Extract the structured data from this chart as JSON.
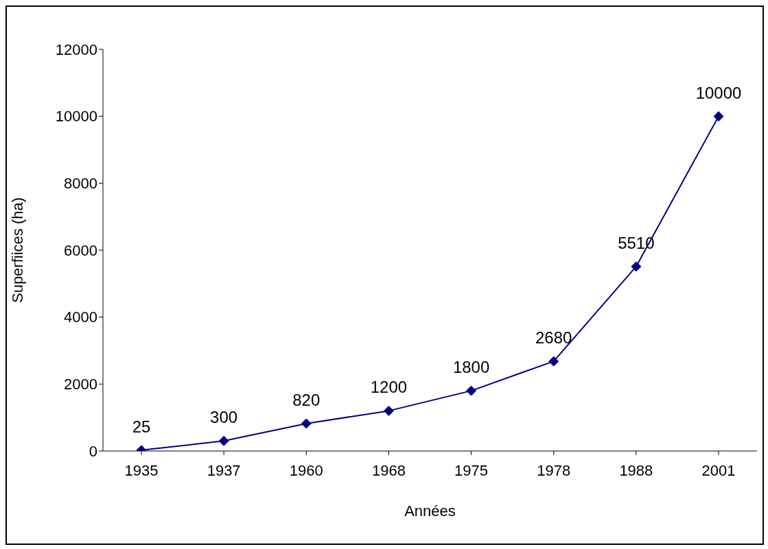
{
  "chart_data": {
    "type": "line",
    "xlabel": "Années",
    "ylabel": "Superfiices (ha)",
    "categories": [
      "1935",
      "1937",
      "1960",
      "1968",
      "1975",
      "1978",
      "1988",
      "2001"
    ],
    "series": [
      {
        "color": "#000080",
        "values": [
          25,
          300,
          820,
          1200,
          1800,
          2680,
          5510,
          10000
        ]
      }
    ],
    "ylim": [
      0,
      12000
    ],
    "yticks": [
      0,
      2000,
      4000,
      6000,
      8000,
      10000,
      12000
    ],
    "grid": false,
    "legend": false,
    "marker": "diamond",
    "line_style": "solid",
    "data_labels": true
  }
}
